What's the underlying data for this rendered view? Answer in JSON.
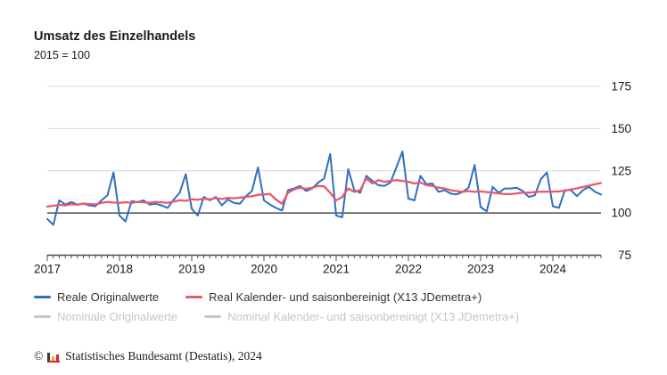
{
  "header": {
    "title": "Umsatz des Einzelhandels",
    "subtitle": "2015 = 100"
  },
  "colors": {
    "accent_blue": "#2f6fc1",
    "accent_red": "#e8596c",
    "disabled_gray": "#c6c6c6",
    "grid_gray": "#d9d9d9",
    "axis_dark": "#4d4d4d",
    "label_dark": "#1a1a1a",
    "legend_text": "#333333",
    "logo_dark": "#3c3c3b",
    "logo_yellow": "#f0bc00",
    "logo_red": "#d22632"
  },
  "chart_data": {
    "type": "line",
    "title": "Umsatz des Einzelhandels",
    "subtitle": "2015 = 100",
    "x_start": "2017-01",
    "x_end": "2024-09",
    "x_tick_years": [
      "2017",
      "2018",
      "2019",
      "2020",
      "2021",
      "2022",
      "2023",
      "2024"
    ],
    "y_ticks": [
      75,
      100,
      125,
      150,
      175
    ],
    "ylim": [
      75,
      180
    ],
    "baseline_value": 100,
    "grid": "horizontal-only",
    "legend_position": "bottom",
    "series": [
      {
        "name": "Reale Originalwerte",
        "color": "#2f6fc1",
        "enabled": true,
        "values": [
          96.5,
          93,
          107.5,
          105,
          106.5,
          105,
          105.5,
          104.5,
          104,
          107.5,
          110.5,
          124,
          98.5,
          95,
          107,
          106.5,
          107.5,
          105,
          105.5,
          104.5,
          103,
          108,
          112,
          123,
          102.5,
          98.5,
          109.5,
          107.5,
          109.5,
          104.5,
          108,
          106,
          105.5,
          110,
          113,
          127,
          107.5,
          105,
          103,
          101.5,
          113.5,
          114.5,
          116,
          113,
          114.5,
          118,
          120.5,
          135,
          98.5,
          97.5,
          126,
          113.5,
          112,
          122,
          119,
          116.5,
          116,
          118,
          127,
          136.5,
          108.5,
          107.5,
          122,
          117,
          117.5,
          112.5,
          113.5,
          111.5,
          111,
          112.5,
          115,
          128.5,
          103.5,
          101,
          115.5,
          112,
          114.5,
          114.5,
          115,
          113,
          109.5,
          110.5,
          120,
          124,
          104,
          103,
          113.5,
          113.5,
          110,
          113.5,
          115.5,
          112.5,
          111
        ]
      },
      {
        "name": "Real Kalender- und saisonbereinigt (X13 JDemetra+)",
        "color": "#e8596c",
        "enabled": true,
        "values": [
          103.8,
          104.3,
          104.8,
          104.5,
          105.2,
          105,
          105.6,
          105.3,
          105.1,
          106,
          106.5,
          106.2,
          106,
          106.4,
          105.9,
          106.6,
          106.3,
          106.1,
          106.6,
          106.3,
          106.1,
          106.8,
          107.5,
          107.2,
          108.2,
          107.8,
          108.5,
          108.1,
          108.8,
          108.3,
          109,
          108.7,
          109.1,
          109.5,
          110,
          110.8,
          111,
          111.3,
          108,
          105.5,
          112,
          114,
          115,
          114.3,
          115,
          116,
          115.8,
          112,
          107.5,
          109.5,
          114.5,
          112.5,
          113.5,
          120.5,
          117.5,
          119.5,
          118.5,
          119,
          119.5,
          119,
          118.5,
          117.5,
          118,
          116.5,
          116,
          115,
          114.5,
          113.5,
          113,
          112.5,
          113,
          112.5,
          112.8,
          112.4,
          112,
          111.6,
          111.2,
          111.2,
          111.6,
          112,
          112,
          112.4,
          112.6,
          112.6,
          112.6,
          112.8,
          113.2,
          114,
          114.6,
          115.4,
          116.2,
          117,
          117.8
        ]
      },
      {
        "name": "Nominale Originalwerte",
        "color": "#c6c6c6",
        "enabled": false,
        "values": []
      },
      {
        "name": "Nominal Kalender- und saisonbereinigt (X13 JDemetra+)",
        "color": "#c6c6c6",
        "enabled": false,
        "values": []
      }
    ]
  },
  "footer": {
    "copyright_symbol": "©",
    "source_text": "Statistisches Bundesamt (Destatis), 2024"
  }
}
